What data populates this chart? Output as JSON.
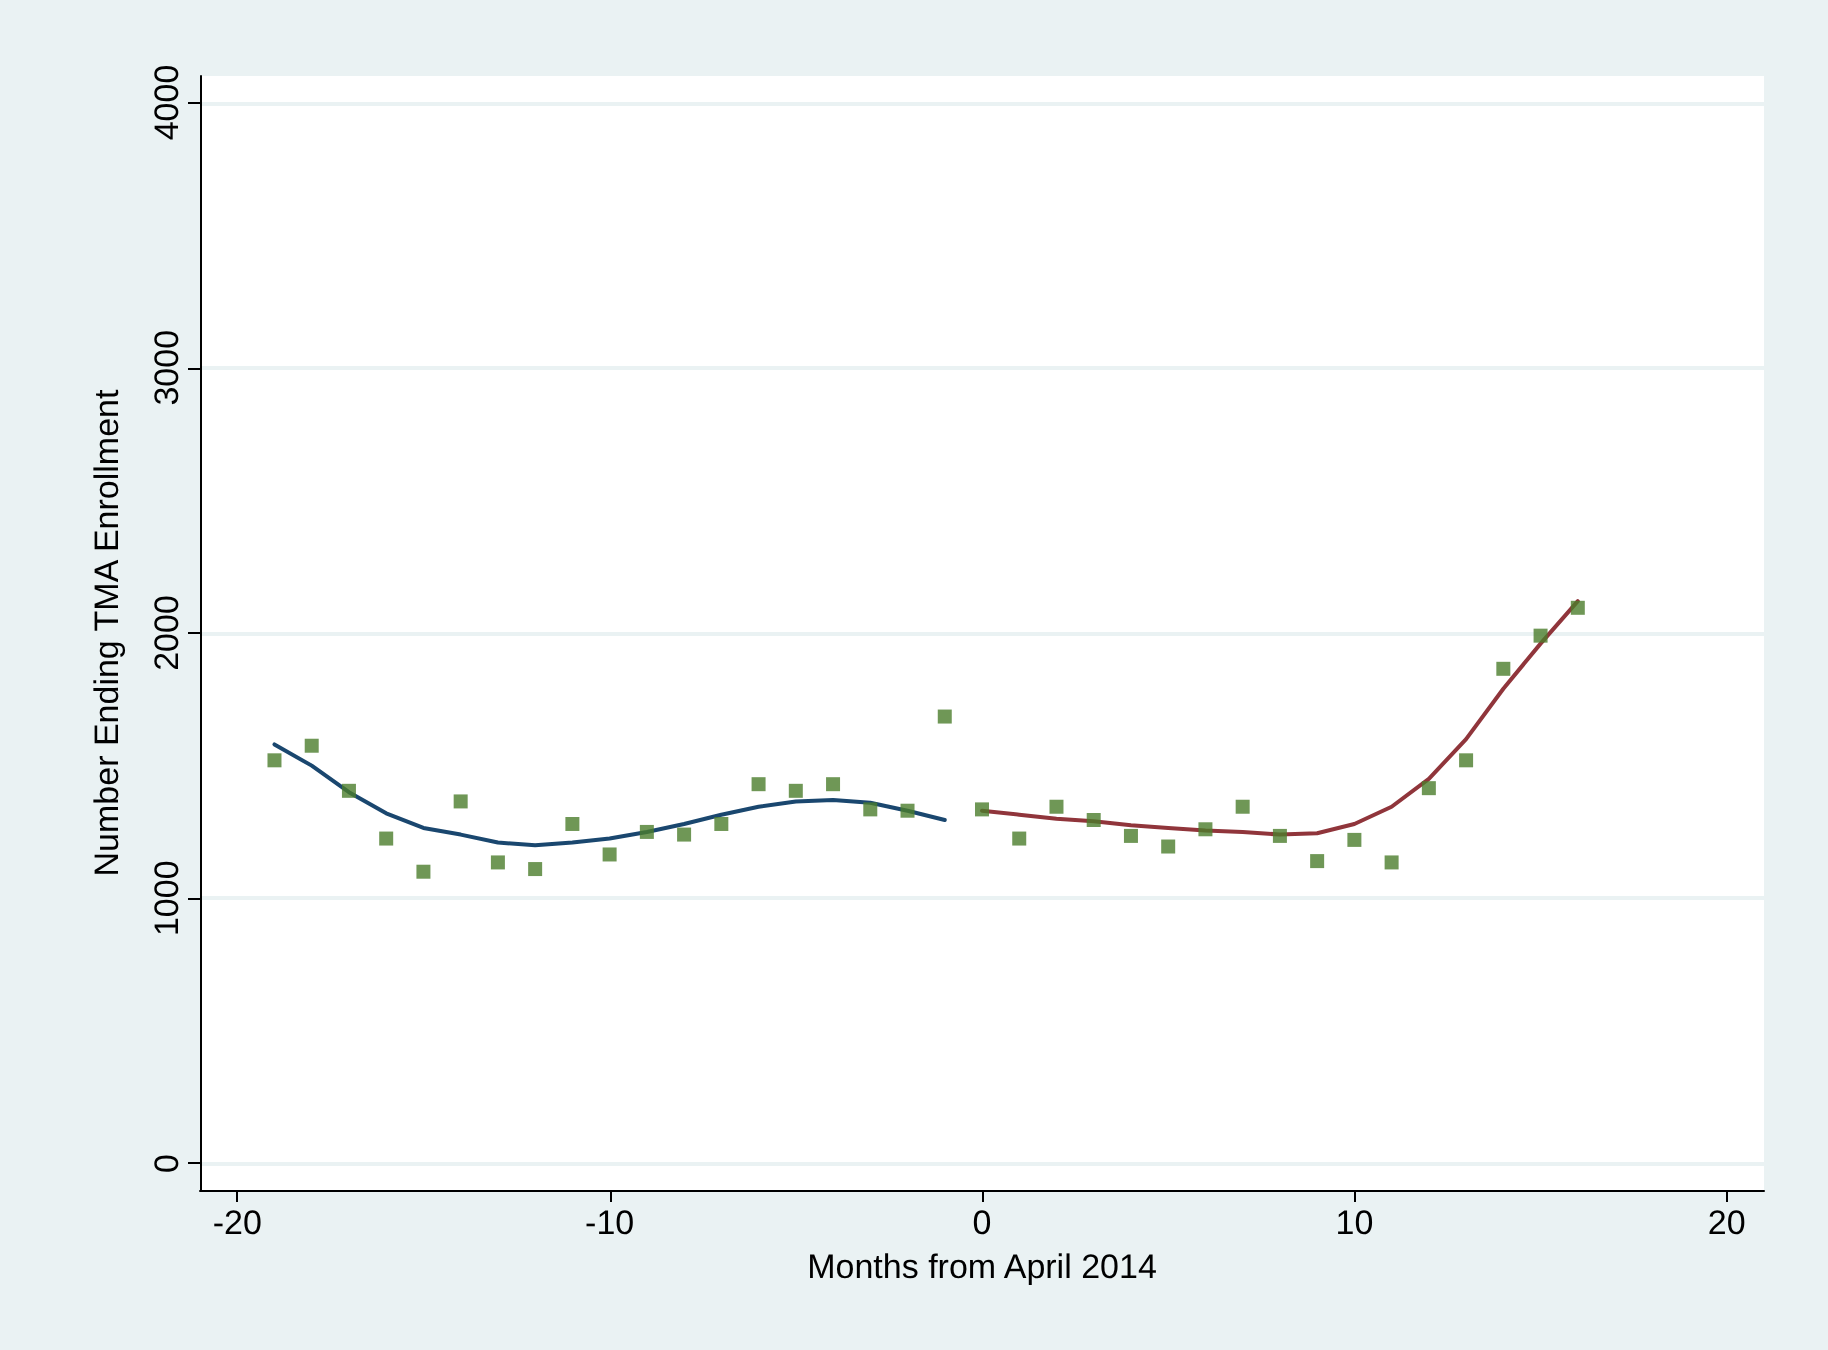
{
  "chart_data": {
    "type": "scatter",
    "xlabel": "Months from April 2014",
    "ylabel": "Number Ending TMA Enrollment",
    "xlim": [
      -21,
      21
    ],
    "xticks": [
      -20,
      -10,
      0,
      10,
      20
    ],
    "ylim": [
      -100,
      4100
    ],
    "yticks": [
      0,
      1000,
      2000,
      3000,
      4000
    ],
    "grid": "y",
    "series": [
      {
        "color": "#4b7d2c",
        "marker": "square",
        "x": [
          -19,
          -18,
          -17,
          -16,
          -15,
          -14,
          -13,
          -12,
          -11,
          -10,
          -9,
          -8,
          -7,
          -6,
          -5,
          -4,
          -3,
          -2,
          -1,
          0,
          1,
          2,
          3,
          4,
          5,
          6,
          7,
          8,
          9,
          10,
          11,
          12,
          13,
          14,
          15,
          16
        ],
        "values": [
          1520,
          1575,
          1405,
          1225,
          1100,
          1365,
          1135,
          1110,
          1280,
          1165,
          1250,
          1240,
          1280,
          1430,
          1405,
          1430,
          1335,
          1330,
          1685,
          1335,
          1225,
          1345,
          1295,
          1235,
          1195,
          1260,
          1345,
          1235,
          1140,
          1220,
          1135,
          1415,
          1520,
          1865,
          1990,
          2095
        ]
      },
      {
        "type": "line",
        "color": "#1a476f",
        "marker": "none",
        "line_style": "solid",
        "x": [
          -19,
          -18,
          -17,
          -16,
          -15,
          -14,
          -13,
          -12,
          -11,
          -10,
          -9,
          -8,
          -7,
          -6,
          -5,
          -4,
          -3,
          -2,
          -1
        ],
        "values": [
          1580,
          1500,
          1400,
          1320,
          1265,
          1240,
          1210,
          1200,
          1210,
          1225,
          1250,
          1280,
          1315,
          1345,
          1365,
          1370,
          1360,
          1330,
          1295
        ]
      },
      {
        "type": "line",
        "color": "#90353b",
        "marker": "none",
        "line_style": "solid",
        "x": [
          0,
          1,
          2,
          3,
          4,
          5,
          6,
          7,
          8,
          9,
          10,
          11,
          12,
          13,
          14,
          15,
          16
        ],
        "values": [
          1330,
          1315,
          1300,
          1290,
          1275,
          1265,
          1255,
          1250,
          1240,
          1245,
          1280,
          1345,
          1450,
          1600,
          1790,
          1960,
          2120
        ]
      }
    ]
  }
}
